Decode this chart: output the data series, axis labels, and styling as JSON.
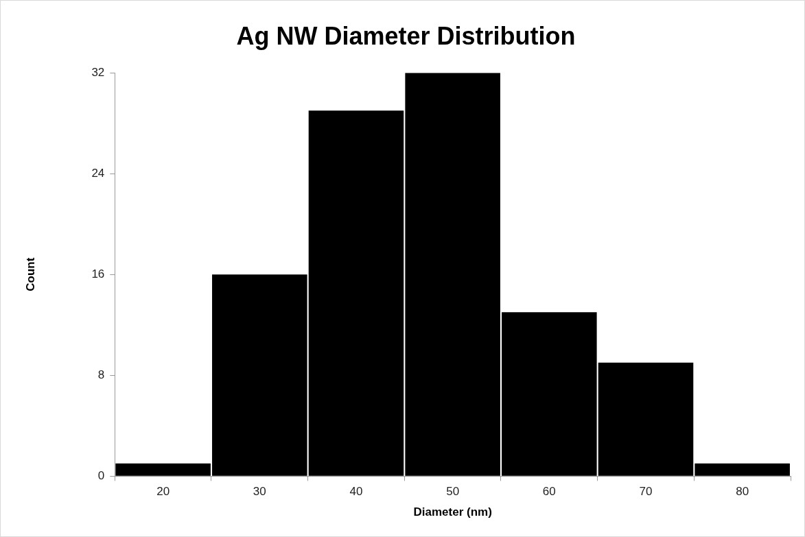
{
  "chart_data": {
    "type": "bar",
    "title": "Ag NW Diameter Distribution",
    "xlabel": "Diameter (nm)",
    "ylabel": "Count",
    "categories": [
      "20",
      "30",
      "40",
      "50",
      "60",
      "70",
      "80"
    ],
    "values": [
      1,
      16,
      29,
      32,
      13,
      9,
      1
    ],
    "color": "#000000",
    "ylim": [
      0,
      32
    ],
    "yticks": [
      0,
      8,
      16,
      24,
      32
    ],
    "grid": false,
    "legend": false
  }
}
